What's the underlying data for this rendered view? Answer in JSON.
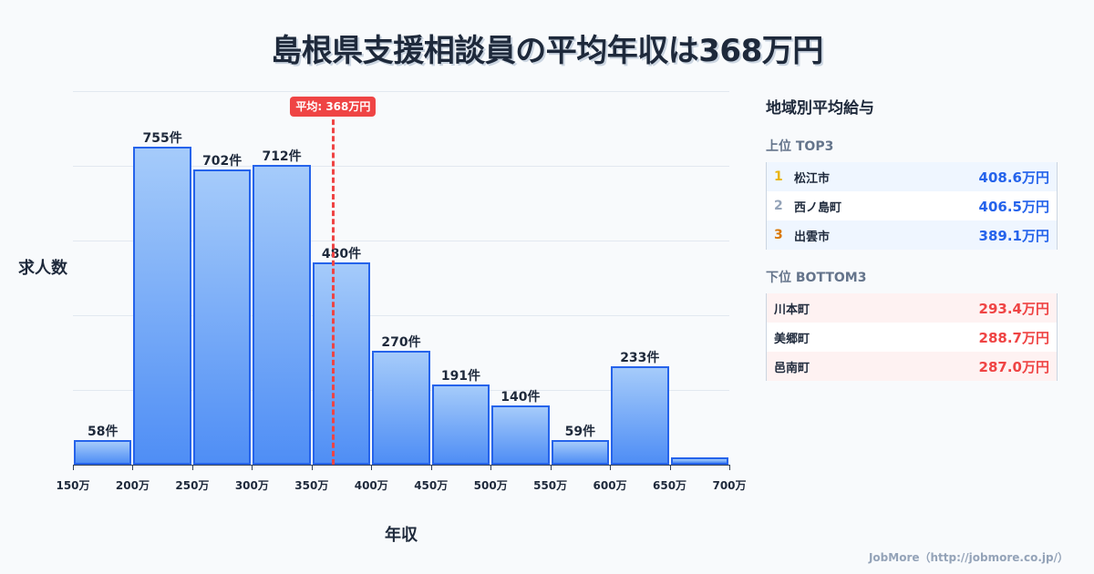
{
  "title": "島根県支援相談員の平均年収は368万円",
  "chart_data": {
    "type": "bar",
    "title": "島根県支援相談員の平均年収は368万円",
    "xlabel": "年収",
    "ylabel": "求人数",
    "categories": [
      "150-200万",
      "200-250万",
      "250-300万",
      "300-350万",
      "350-400万",
      "400-450万",
      "450-500万",
      "500-550万",
      "550-600万",
      "600-650万",
      "650-700万"
    ],
    "values": [
      58,
      755,
      702,
      712,
      480,
      270,
      191,
      140,
      59,
      233,
      17
    ],
    "value_labels": [
      "58件",
      "755件",
      "702件",
      "712件",
      "480件",
      "270件",
      "191件",
      "140件",
      "59件",
      "233件",
      ""
    ],
    "x_ticks": [
      "150万",
      "200万",
      "250万",
      "300万",
      "350万",
      "400万",
      "450万",
      "500万",
      "550万",
      "600万",
      "650万",
      "700万"
    ],
    "ylim": [
      0,
      887
    ],
    "grid": true,
    "annotations": [
      {
        "type": "vline",
        "x": 368,
        "label": "平均: 368万円",
        "color": "#ef4444"
      }
    ]
  },
  "avg": {
    "label": "平均: 368万円",
    "value": 368
  },
  "axis": {
    "ylabel": "求人数",
    "xlabel": "年収"
  },
  "panel": {
    "title": "地域別平均給与",
    "top": {
      "label": "上位 TOP3",
      "rows": [
        {
          "rank": "1",
          "name": "松江市",
          "value": "408.6万円"
        },
        {
          "rank": "2",
          "name": "西ノ島町",
          "value": "406.5万円"
        },
        {
          "rank": "3",
          "name": "出雲市",
          "value": "389.1万円"
        }
      ]
    },
    "bottom": {
      "label": "下位 BOTTOM3",
      "rows": [
        {
          "name": "川本町",
          "value": "293.4万円"
        },
        {
          "name": "美郷町",
          "value": "288.7万円"
        },
        {
          "name": "邑南町",
          "value": "287.0万円"
        }
      ]
    }
  },
  "footer": "JobMore（http://jobmore.co.jp/）",
  "colors": {
    "bar": "#4f8ef5",
    "bar_border": "#2563eb",
    "avg": "#ef4444",
    "top_value": "#2563eb",
    "bottom_value": "#ef4444"
  }
}
